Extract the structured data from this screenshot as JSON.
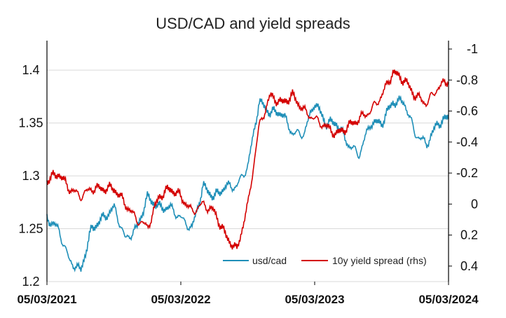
{
  "chart_data": {
    "type": "line",
    "title": "USD/CAD and yield spreads",
    "x_ticks": [
      "05/03/2021",
      "05/03/2022",
      "05/03/2023",
      "05/03/2024"
    ],
    "y_left": {
      "ylim": [
        1.2,
        1.42
      ],
      "ticks": [
        "1.2",
        "1.25",
        "1.3",
        "1.35",
        "1.4"
      ]
    },
    "y_right": {
      "ylim": [
        -1.0,
        0.5
      ],
      "inverted": true,
      "ticks": [
        "-1",
        "-0.8",
        "-0.6",
        "-0.4",
        "-0.2",
        "0",
        "0.2",
        "0.4"
      ]
    },
    "grid": "horizontal",
    "legend_position": "bottom-right",
    "colors": {
      "usdcad": "#1f8fb8",
      "spread": "#d40000"
    },
    "series": [
      {
        "name": "usd/cad",
        "axis": "left",
        "x": [
          "2021-03-05",
          "2021-04-05",
          "2021-05-05",
          "2021-06-05",
          "2021-07-05",
          "2021-08-05",
          "2021-09-05",
          "2021-10-05",
          "2021-11-05",
          "2021-12-05",
          "2022-01-05",
          "2022-02-05",
          "2022-03-05",
          "2022-04-05",
          "2022-05-05",
          "2022-06-05",
          "2022-07-05",
          "2022-08-05",
          "2022-09-05",
          "2022-10-05",
          "2022-11-05",
          "2022-12-05",
          "2023-01-05",
          "2023-02-05",
          "2023-03-05",
          "2023-04-05",
          "2023-05-05",
          "2023-06-05",
          "2023-07-05",
          "2023-08-05",
          "2023-09-05",
          "2023-10-05",
          "2023-11-05",
          "2023-12-05",
          "2024-01-05",
          "2024-02-05",
          "2024-03-05"
        ],
        "values": [
          1.26,
          1.25,
          1.22,
          1.21,
          1.25,
          1.26,
          1.27,
          1.24,
          1.25,
          1.28,
          1.27,
          1.27,
          1.26,
          1.25,
          1.29,
          1.28,
          1.29,
          1.29,
          1.31,
          1.37,
          1.36,
          1.36,
          1.34,
          1.34,
          1.37,
          1.35,
          1.35,
          1.33,
          1.32,
          1.35,
          1.35,
          1.37,
          1.37,
          1.34,
          1.33,
          1.35,
          1.355
        ]
      },
      {
        "name": "10y yield spread (rhs)",
        "axis": "right",
        "x": [
          "2021-03-05",
          "2021-04-05",
          "2021-05-05",
          "2021-06-05",
          "2021-07-05",
          "2021-08-05",
          "2021-09-05",
          "2021-10-05",
          "2021-11-05",
          "2021-12-05",
          "2022-01-05",
          "2022-02-05",
          "2022-03-05",
          "2022-04-05",
          "2022-05-05",
          "2022-06-05",
          "2022-07-05",
          "2022-08-05",
          "2022-09-05",
          "2022-10-05",
          "2022-11-05",
          "2022-12-05",
          "2023-01-05",
          "2023-02-05",
          "2023-03-05",
          "2023-04-05",
          "2023-05-05",
          "2023-06-05",
          "2023-07-05",
          "2023-08-05",
          "2023-09-05",
          "2023-10-05",
          "2023-11-05",
          "2023-12-05",
          "2024-01-05",
          "2024-02-05",
          "2024-03-05"
        ],
        "values": [
          -0.15,
          -0.2,
          -0.1,
          -0.05,
          -0.1,
          -0.1,
          -0.1,
          0.0,
          0.1,
          0.15,
          -0.05,
          -0.1,
          -0.05,
          0.05,
          0.0,
          0.05,
          0.2,
          0.3,
          0.0,
          -0.5,
          -0.7,
          -0.65,
          -0.7,
          -0.6,
          -0.55,
          -0.5,
          -0.45,
          -0.5,
          -0.55,
          -0.6,
          -0.7,
          -0.85,
          -0.8,
          -0.7,
          -0.65,
          -0.75,
          -0.8
        ]
      }
    ]
  }
}
